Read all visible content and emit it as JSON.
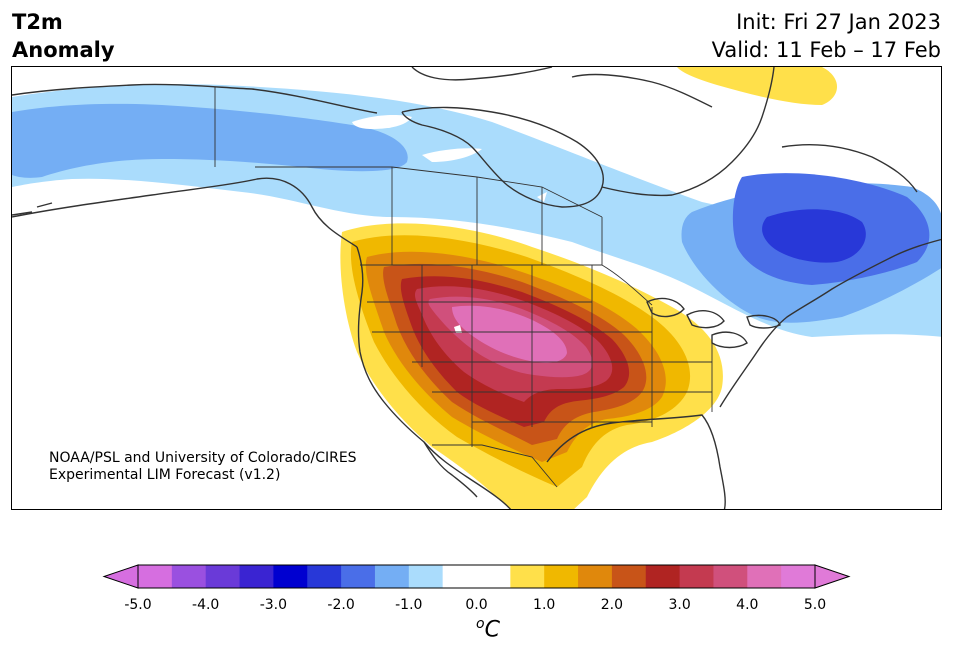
{
  "header": {
    "title_line1": "T2m",
    "title_line2": "Anomaly",
    "init": "Init: Fri 27 Jan 2023",
    "valid": "Valid: 11 Feb – 17 Feb"
  },
  "credit": {
    "line1": "NOAA/PSL and University of Colorado/CIRES",
    "line2": "Experimental LIM Forecast (v1.2)"
  },
  "colorbar": {
    "unit_base": "C",
    "unit_sup": "o",
    "ticks": [
      "-5.0",
      "-4.0",
      "-3.0",
      "-2.0",
      "-1.0",
      "0.0",
      "1.0",
      "2.0",
      "3.0",
      "4.0",
      "5.0"
    ],
    "colors": [
      "#d66ee0",
      "#9a50e0",
      "#6a3ad8",
      "#3a24d2",
      "#0000d0",
      "#2838d8",
      "#4a6ee8",
      "#74aef4",
      "#aadcfc",
      "#ffffff",
      "#ffffff",
      "#ffe04a",
      "#f0b800",
      "#e0880c",
      "#c85418",
      "#b02422",
      "#c43a50",
      "#d0507c",
      "#e070b8",
      "#e07ad8"
    ],
    "under_color": "#d66ee0",
    "over_color": "#e07ad8"
  },
  "map": {
    "regions": [
      {
        "name": "Alaska/Yukon cool anomaly",
        "level": "-1.0 to -0.5"
      },
      {
        "name": "Quebec cold anomaly",
        "level": "-2.5 to -2.0"
      },
      {
        "name": "Western US warm anomaly",
        "level": "4.0 to 4.5"
      },
      {
        "name": "Greenland warm anomaly",
        "level": "0.5 to 1.0"
      }
    ]
  }
}
